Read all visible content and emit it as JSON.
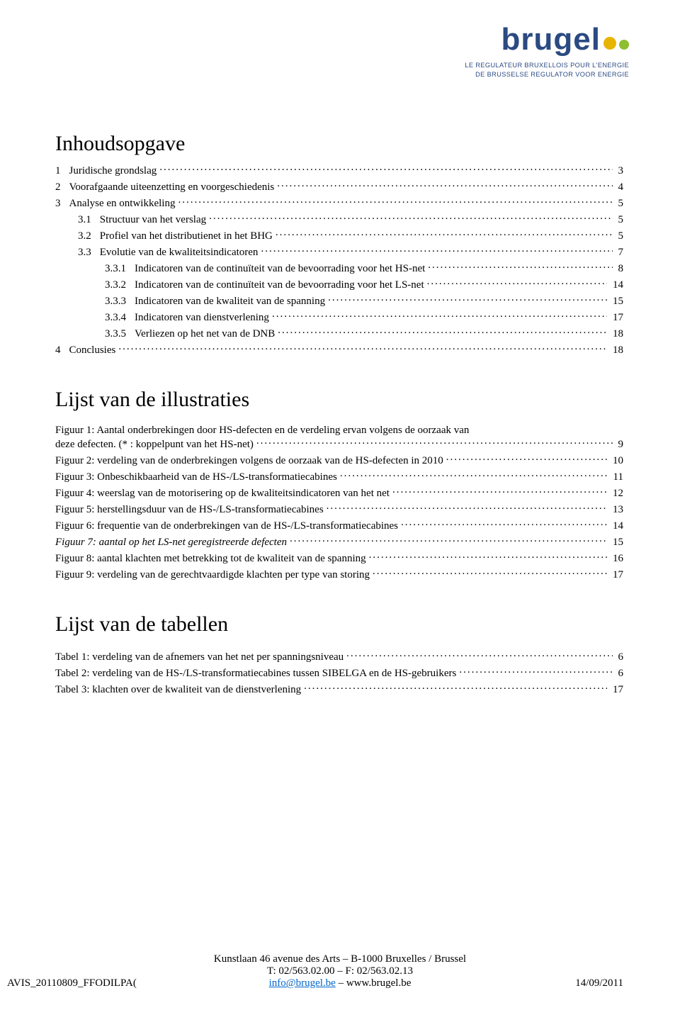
{
  "logo": {
    "word": "brugel",
    "dot_color_1": "#e7b500",
    "dot_color_2": "#8dbf2e",
    "dot_size_1": 18,
    "dot_size_2": 14,
    "tagline_line1": "LE REGULATEUR BRUXELLOIS POUR L'ENERGIE",
    "tagline_line2": "DE BRUSSELSE REGULATOR VOOR ENERGIE"
  },
  "headings": {
    "toc": "Inhoudsopgave",
    "illustrations": "Lijst van de illustraties",
    "tables": "Lijst van de tabellen"
  },
  "toc": [
    {
      "num": "1",
      "text": "Juridische grondslag",
      "page": "3",
      "indent": 0
    },
    {
      "num": "2",
      "text": "Voorafgaande uiteenzetting en voorgeschiedenis",
      "page": "4",
      "indent": 0
    },
    {
      "num": "3",
      "text": "Analyse en ontwikkeling",
      "page": "5",
      "indent": 0
    },
    {
      "num": "3.1",
      "text": "Structuur van het verslag",
      "page": "5",
      "indent": 1
    },
    {
      "num": "3.2",
      "text": "Profiel van het distributienet in het BHG",
      "page": "5",
      "indent": 1
    },
    {
      "num": "3.3",
      "text": "Evolutie van de kwaliteitsindicatoren",
      "page": "7",
      "indent": 1
    },
    {
      "num": "3.3.1",
      "text": "Indicatoren van de continuïteit van de bevoorrading voor het HS-net",
      "page": "8",
      "indent": 2
    },
    {
      "num": "3.3.2",
      "text": "Indicatoren van de continuïteit van de bevoorrading voor het LS-net",
      "page": "14",
      "indent": 2
    },
    {
      "num": "3.3.3",
      "text": "Indicatoren van de kwaliteit van de spanning",
      "page": "15",
      "indent": 2
    },
    {
      "num": "3.3.4",
      "text": "Indicatoren van dienstverlening",
      "page": "17",
      "indent": 2
    },
    {
      "num": "3.3.5",
      "text": "Verliezen op het net van de DNB",
      "page": "18",
      "indent": 2
    },
    {
      "num": "4",
      "text": "Conclusies",
      "page": "18",
      "indent": 0
    }
  ],
  "figures": [
    {
      "text_line1": "Figuur 1: Aantal onderbrekingen door HS-defecten en de verdeling ervan volgens de oorzaak van",
      "text_line2": "deze defecten. (* : koppelpunt van het HS-net)",
      "page": "9",
      "multiline": true
    },
    {
      "text": "Figuur 2: verdeling van de onderbrekingen volgens de oorzaak van de HS-defecten in 2010",
      "page": "10"
    },
    {
      "text": "Figuur 3: Onbeschikbaarheid van de HS-/LS-transformatiecabines",
      "page": "11"
    },
    {
      "text": "Figuur 4: weerslag van de motorisering op de kwaliteitsindicatoren van het net",
      "page": "12"
    },
    {
      "text": "Figuur 5: herstellingsduur van de HS-/LS-transformatiecabines",
      "page": "13"
    },
    {
      "text": "Figuur 6: frequentie van de onderbrekingen van de HS-/LS-transformatiecabines",
      "page": "14"
    },
    {
      "text": "Figuur 7: aantal op het LS-net geregistreerde defecten",
      "page": "15",
      "italic": true
    },
    {
      "text": "Figuur 8: aantal klachten met betrekking tot de kwaliteit van de spanning",
      "page": "16"
    },
    {
      "text": "Figuur 9: verdeling van de gerechtvaardigde klachten per type van storing",
      "page": "17"
    }
  ],
  "tables": [
    {
      "text": "Tabel 1: verdeling van de afnemers van het net per spanningsniveau",
      "page": "6"
    },
    {
      "text": "Tabel 2: verdeling van de HS-/LS-transformatiecabines tussen SIBELGA en de HS-gebruikers",
      "page": "6"
    },
    {
      "text": "Tabel 3: klachten over de kwaliteit van de dienstverlening",
      "page": "17"
    }
  ],
  "footer": {
    "address": "Kunstlaan 46 avenue des Arts – B-1000 Bruxelles / Brussel",
    "phone": "T: 02/563.02.00 – F: 02/563.02.13",
    "email": "info@brugel.be",
    "sep": " – ",
    "web": "www.brugel.be",
    "left": "AVIS_20110809_FFODILPA(",
    "right": "14/09/2011"
  }
}
